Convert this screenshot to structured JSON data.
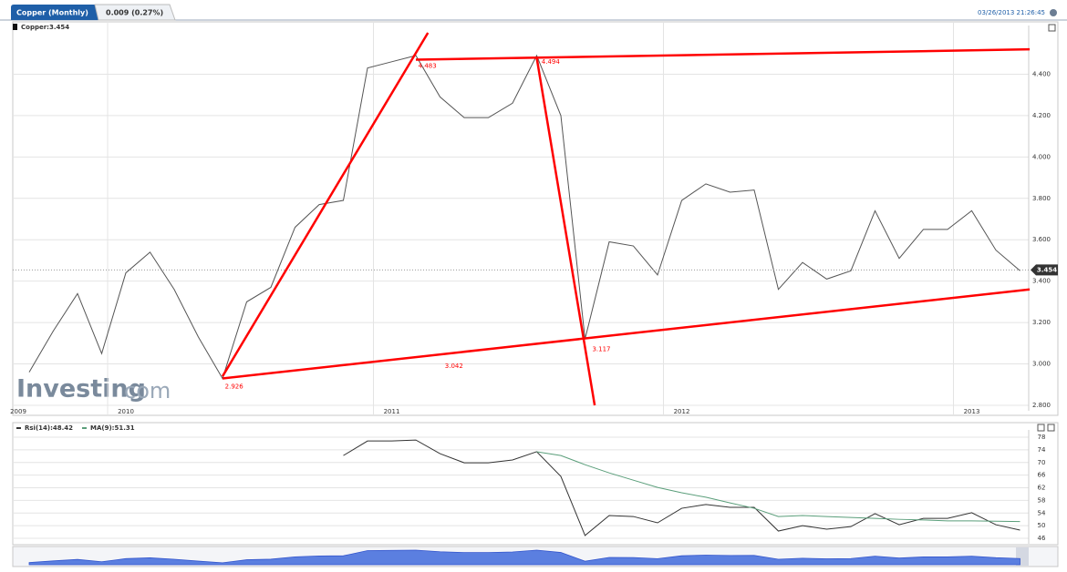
{
  "header": {
    "tab": "Copper (Monthly)",
    "change": "0.009 (0.27%)",
    "timestamp": "03/26/2013 21:26:45"
  },
  "logo": {
    "brand": "Investing",
    "suffix": "com"
  },
  "chart_data": [
    {
      "type": "line",
      "categories": [
        "2009",
        null,
        null,
        null,
        "2010",
        null,
        null,
        null,
        null,
        null,
        null,
        null,
        null,
        null,
        null,
        "2011",
        null,
        null,
        null,
        null,
        null,
        null,
        null,
        null,
        null,
        null,
        null,
        "2012",
        null,
        null,
        null,
        null,
        null,
        null,
        null,
        null,
        null,
        null,
        null,
        "2013",
        null,
        null
      ],
      "series": [
        {
          "name": "Copper:3.454",
          "color": "#555555",
          "values": [
            2.96,
            3.16,
            3.34,
            3.05,
            3.44,
            3.54,
            3.36,
            3.13,
            2.93,
            3.3,
            3.37,
            3.66,
            3.77,
            3.79,
            4.43,
            4.46,
            4.49,
            4.29,
            4.19,
            4.19,
            4.26,
            4.49,
            4.2,
            3.12,
            3.59,
            3.57,
            3.43,
            3.79,
            3.87,
            3.83,
            3.84,
            3.36,
            3.49,
            3.41,
            3.45,
            3.74,
            3.51,
            3.65,
            3.65,
            3.74,
            3.55,
            3.45
          ]
        }
      ],
      "ylim": [
        2.8,
        4.6
      ],
      "yticks": [
        {
          "value": 2.8,
          "label": "2.800"
        },
        {
          "value": 3.0,
          "label": "3.000"
        },
        {
          "value": 3.2,
          "label": "3.200"
        },
        {
          "value": 3.4,
          "label": "3.400"
        },
        {
          "value": 3.6,
          "label": "3.600"
        },
        {
          "value": 3.8,
          "label": "3.800"
        },
        {
          "value": 4.0,
          "label": "4.000"
        },
        {
          "value": 4.2,
          "label": "4.200"
        },
        {
          "value": 4.4,
          "label": "4.400"
        }
      ],
      "grid": true,
      "last_price": 3.454,
      "trendlines": [
        {
          "color": "#ff0000",
          "x": [
            8,
            16.5
          ],
          "values": [
            2.94,
            4.6
          ]
        },
        {
          "color": "#ff0000",
          "x": [
            16,
            41.4
          ],
          "values": [
            4.47,
            4.52
          ]
        },
        {
          "color": "#ff0000",
          "x": [
            21,
            23.4
          ],
          "values": [
            4.48,
            2.8
          ]
        },
        {
          "color": "#ff0000",
          "x": [
            8,
            41.4
          ],
          "values": [
            2.93,
            3.36
          ]
        }
      ],
      "annotations": [
        {
          "text": "4.483",
          "x": 16.1,
          "y": 4.44,
          "color": "#ff0000"
        },
        {
          "text": "4.494",
          "x": 21.2,
          "y": 4.46,
          "color": "#ff0000"
        },
        {
          "text": "2.926",
          "x": 8.1,
          "y": 2.89,
          "color": "#ff0000"
        },
        {
          "text": "3.042",
          "x": 17.2,
          "y": 2.99,
          "color": "#ff0000"
        },
        {
          "text": "3.117",
          "x": 23.3,
          "y": 3.07,
          "color": "#ff0000"
        }
      ]
    },
    {
      "type": "line",
      "series": [
        {
          "name": "Rsi(14):48.42",
          "color": "#333333",
          "values": [
            null,
            null,
            null,
            null,
            null,
            null,
            null,
            null,
            null,
            null,
            null,
            null,
            null,
            72.2,
            76.8,
            76.8,
            77.1,
            72.8,
            69.9,
            69.9,
            70.8,
            73.4,
            65.6,
            46.9,
            53.2,
            52.9,
            50.9,
            55.5,
            56.7,
            55.8,
            55.8,
            48.3,
            50,
            48.9,
            49.7,
            53.8,
            50.3,
            52.3,
            52.3,
            54.1,
            50.3,
            48.6
          ]
        },
        {
          "name": "MA(9):51.31",
          "color": "#5a9e7a",
          "values": [
            null,
            null,
            null,
            null,
            null,
            null,
            null,
            null,
            null,
            null,
            null,
            null,
            null,
            null,
            null,
            null,
            null,
            null,
            null,
            null,
            null,
            73.4,
            72.2,
            69.3,
            66.7,
            64.4,
            62.1,
            60.4,
            59,
            57.2,
            55.5,
            52.9,
            53.2,
            52.9,
            52.6,
            52.3,
            52,
            51.8,
            51.5,
            51.5,
            51.4,
            51.3
          ]
        }
      ],
      "ylim": [
        46,
        78
      ],
      "yticks": [
        46,
        50,
        54,
        58,
        62,
        66,
        70,
        74,
        78
      ],
      "grid": true
    }
  ]
}
